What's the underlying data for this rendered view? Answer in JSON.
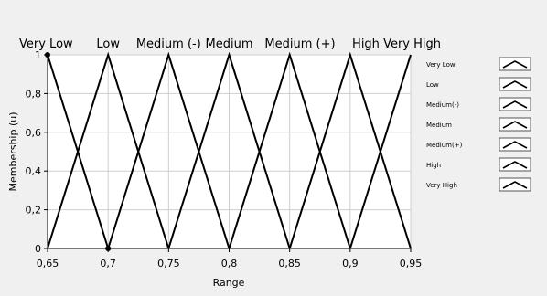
{
  "chart_data": {
    "type": "line",
    "xlabel": "Range",
    "ylabel": "Membership (u)",
    "xlim": [
      0.65,
      0.95
    ],
    "ylim": [
      0,
      1
    ],
    "x_ticks": [
      "0,65",
      "0,7",
      "0,75",
      "0,8",
      "0,85",
      "0,9",
      "0,95"
    ],
    "x_tick_values": [
      0.65,
      0.7,
      0.75,
      0.8,
      0.85,
      0.9,
      0.95
    ],
    "y_ticks": [
      "0",
      "0,2",
      "0,4",
      "0,6",
      "0,8",
      "1"
    ],
    "y_tick_values": [
      0,
      0.2,
      0.4,
      0.6,
      0.8,
      1.0
    ],
    "grid": true,
    "legend_position": "right",
    "category_labels": [
      {
        "text": "Very Low",
        "x": 0.65
      },
      {
        "text": "Low",
        "x": 0.7
      },
      {
        "text": "Medium (-)",
        "x": 0.75
      },
      {
        "text": "Medium",
        "x": 0.8
      },
      {
        "text": "Medium (+)",
        "x": 0.85
      },
      {
        "text": "High",
        "x": 0.9
      },
      {
        "text": "Very High",
        "x": 0.95
      }
    ],
    "series": [
      {
        "name": "Very Low",
        "x": [
          0.65,
          0.7
        ],
        "y": [
          1,
          0
        ]
      },
      {
        "name": "Low",
        "x": [
          0.65,
          0.7,
          0.75
        ],
        "y": [
          0,
          1,
          0
        ]
      },
      {
        "name": "Medium(-)",
        "x": [
          0.7,
          0.75,
          0.8
        ],
        "y": [
          0,
          1,
          0
        ]
      },
      {
        "name": "Medium",
        "x": [
          0.75,
          0.8,
          0.85
        ],
        "y": [
          0,
          1,
          0
        ]
      },
      {
        "name": "Medium(+)",
        "x": [
          0.8,
          0.85,
          0.9
        ],
        "y": [
          0,
          1,
          0
        ]
      },
      {
        "name": "High",
        "x": [
          0.85,
          0.9,
          0.95
        ],
        "y": [
          0,
          1,
          0
        ]
      },
      {
        "name": "Very High",
        "x": [
          0.9,
          0.95
        ],
        "y": [
          0,
          1
        ]
      }
    ],
    "colors": {
      "background": "#f0f0f0",
      "plot_area": "#ffffff",
      "line": "#000000",
      "grid": "#cfcfcf"
    }
  }
}
